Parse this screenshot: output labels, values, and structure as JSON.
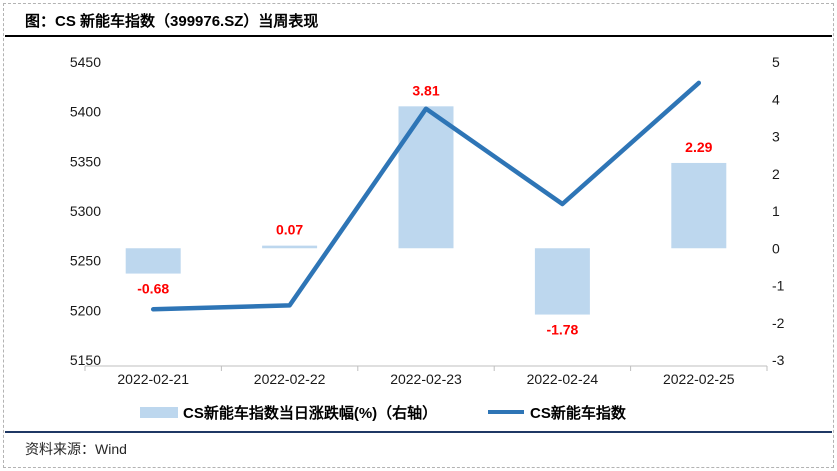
{
  "header": {
    "title": "图：CS 新能车指数（399976.SZ）当周表现"
  },
  "footer": {
    "source": "资料来源：Wind"
  },
  "legend": {
    "items": [
      {
        "swatch": "bar-swatch",
        "label": "CS新能车指数当日涨跌幅(%)（右轴）"
      },
      {
        "swatch": "line-swatch",
        "label": "CS新能车指数"
      }
    ]
  },
  "colors": {
    "bar": "#BDD7EE",
    "line": "#2E75B6",
    "data_label": "#FF0000",
    "axis_line": "#BFBFBF",
    "axis_text": "#1a1a1a"
  },
  "chart_data": {
    "type": "combo-bar-line",
    "categories": [
      "2022-02-21",
      "2022-02-22",
      "2022-02-23",
      "2022-02-24",
      "2022-02-25"
    ],
    "series": [
      {
        "name": "CS新能车指数当日涨跌幅(%)（右轴）",
        "type": "bar",
        "axis": "right",
        "values": [
          -0.68,
          0.07,
          3.81,
          -1.78,
          2.29
        ],
        "labels": [
          "-0.68",
          "0.07",
          "3.81",
          "-1.78",
          "2.29"
        ]
      },
      {
        "name": "CS新能车指数",
        "type": "line",
        "axis": "left",
        "values": [
          5201,
          5205,
          5403,
          5307,
          5429
        ]
      }
    ],
    "left_axis": {
      "min": 5150,
      "max": 5450,
      "step": 50,
      "ticks": [
        5450,
        5400,
        5350,
        5300,
        5250,
        5200,
        5150
      ]
    },
    "right_axis": {
      "min": -3,
      "max": 5,
      "step": 1,
      "ticks": [
        5,
        4,
        3,
        2,
        1,
        0,
        -1,
        -2,
        -3
      ]
    },
    "grid": false,
    "legend_position": "bottom"
  }
}
